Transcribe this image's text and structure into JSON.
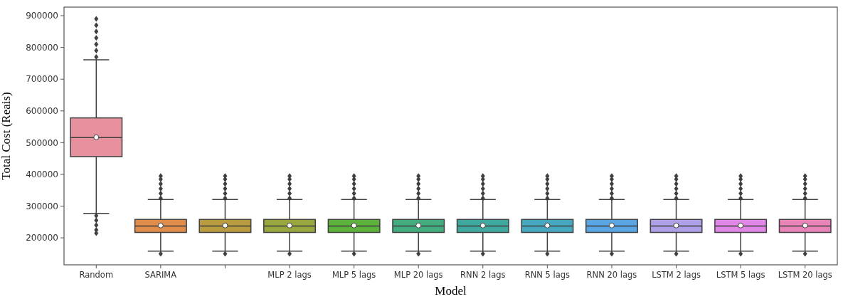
{
  "chart_data": {
    "type": "box",
    "xlabel": "Model",
    "ylabel": "Total Cost (Reais)",
    "categories": [
      "Random",
      "SARIMA",
      null,
      "MLP 2 lags",
      "MLP 5 lags",
      "MLP 20 lags",
      "RNN 2 lags",
      "RNN 5 lags",
      "RNN 20 lags",
      "LSTM 2 lags",
      "LSTM 5 lags",
      "LSTM 20 lags"
    ],
    "colors": [
      "#e8919e",
      "#e08c4a",
      "#b99b40",
      "#9aa63e",
      "#5db23c",
      "#44ad80",
      "#40a99f",
      "#45a8c0",
      "#5aa5e3",
      "#ae9fe8",
      "#e087e7",
      "#e984b8"
    ],
    "boxes": [
      {
        "low": 277000,
        "q1": 456000,
        "median": 516000,
        "q3": 578000,
        "high": 761000,
        "mean": 517000,
        "outliers": [
          770000,
          790000,
          810000,
          830000,
          850000,
          870000,
          890000,
          270000,
          255000,
          240000,
          225000,
          215000
        ]
      },
      {
        "low": 158000,
        "q1": 217000,
        "median": 237000,
        "q3": 258000,
        "high": 321000,
        "mean": 239000,
        "outliers": [
          325000,
          340000,
          355000,
          370000,
          385000,
          395000,
          150000
        ]
      },
      {
        "low": 158000,
        "q1": 217000,
        "median": 237000,
        "q3": 258000,
        "high": 321000,
        "mean": 239000,
        "outliers": [
          325000,
          340000,
          355000,
          370000,
          385000,
          395000,
          150000
        ]
      },
      {
        "low": 158000,
        "q1": 217000,
        "median": 237000,
        "q3": 258000,
        "high": 321000,
        "mean": 239000,
        "outliers": [
          325000,
          340000,
          355000,
          370000,
          385000,
          395000,
          150000
        ]
      },
      {
        "low": 158000,
        "q1": 217000,
        "median": 237000,
        "q3": 258000,
        "high": 321000,
        "mean": 239000,
        "outliers": [
          325000,
          340000,
          355000,
          370000,
          385000,
          395000,
          150000
        ]
      },
      {
        "low": 158000,
        "q1": 217000,
        "median": 237000,
        "q3": 258000,
        "high": 321000,
        "mean": 239000,
        "outliers": [
          325000,
          340000,
          355000,
          370000,
          385000,
          395000,
          150000
        ]
      },
      {
        "low": 158000,
        "q1": 217000,
        "median": 237000,
        "q3": 258000,
        "high": 321000,
        "mean": 239000,
        "outliers": [
          325000,
          340000,
          355000,
          370000,
          385000,
          395000,
          150000
        ]
      },
      {
        "low": 158000,
        "q1": 217000,
        "median": 237000,
        "q3": 258000,
        "high": 321000,
        "mean": 239000,
        "outliers": [
          325000,
          340000,
          355000,
          370000,
          385000,
          395000,
          150000
        ]
      },
      {
        "low": 158000,
        "q1": 217000,
        "median": 237000,
        "q3": 258000,
        "high": 321000,
        "mean": 239000,
        "outliers": [
          325000,
          340000,
          355000,
          370000,
          385000,
          395000,
          150000
        ]
      },
      {
        "low": 158000,
        "q1": 217000,
        "median": 237000,
        "q3": 258000,
        "high": 321000,
        "mean": 239000,
        "outliers": [
          325000,
          340000,
          355000,
          370000,
          385000,
          395000,
          150000
        ]
      },
      {
        "low": 158000,
        "q1": 217000,
        "median": 237000,
        "q3": 258000,
        "high": 321000,
        "mean": 239000,
        "outliers": [
          325000,
          340000,
          355000,
          370000,
          385000,
          395000,
          150000
        ]
      },
      {
        "low": 158000,
        "q1": 217000,
        "median": 237000,
        "q3": 258000,
        "high": 321000,
        "mean": 239000,
        "outliers": [
          325000,
          340000,
          355000,
          370000,
          385000,
          395000,
          150000
        ]
      }
    ],
    "ylim": [
      115000,
      927000
    ],
    "yticks": [
      200000,
      300000,
      400000,
      500000,
      600000,
      700000,
      800000,
      900000
    ]
  }
}
